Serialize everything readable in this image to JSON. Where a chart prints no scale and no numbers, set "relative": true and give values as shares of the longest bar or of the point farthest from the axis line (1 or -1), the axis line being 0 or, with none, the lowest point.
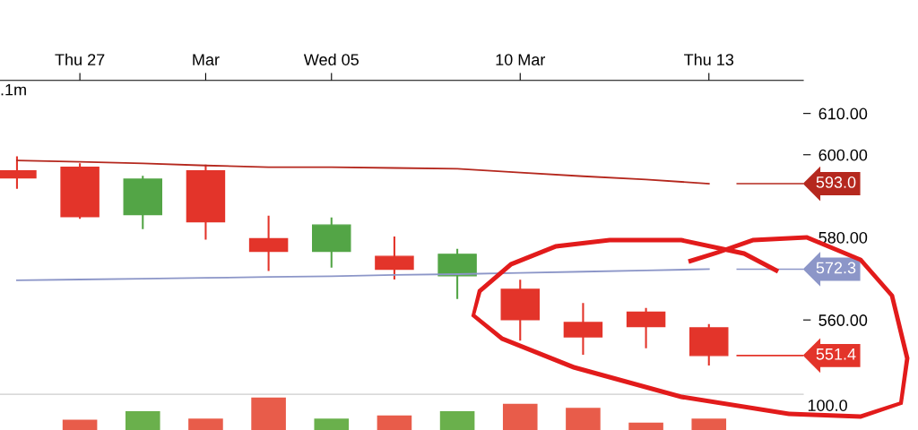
{
  "chart_data": [
    {
      "type": "candlestick",
      "categories": [
        null,
        "Thu 27",
        null,
        "Mar",
        null,
        "Wed 05",
        null,
        null,
        "10 Mar",
        null,
        null,
        "Thu 13"
      ],
      "ohlc": [
        [
          596.1,
          599.4,
          592.0,
          594.4
        ],
        [
          597.0,
          597.7,
          584.7,
          585.0
        ],
        [
          585.5,
          594.7,
          582.2,
          594.1
        ],
        [
          596.1,
          597.4,
          579.7,
          583.8
        ],
        [
          579.7,
          585.0,
          572.1,
          576.6
        ],
        [
          576.6,
          584.6,
          572.9,
          583.0
        ],
        [
          575.4,
          580.0,
          570.0,
          572.3
        ],
        [
          570.7,
          577.0,
          565.3,
          575.9
        ],
        [
          567.4,
          569.5,
          555.2,
          560.1
        ],
        [
          559.4,
          563.9,
          551.8,
          555.9
        ],
        [
          561.9,
          562.7,
          553.4,
          558.4
        ],
        [
          558.1,
          558.8,
          549.2,
          551.4
        ]
      ],
      "colors": [
        "#e3342a",
        "#e3342a",
        "#53a546",
        "#e3342a",
        "#e3342a",
        "#53a546",
        "#e3342a",
        "#53a546",
        "#e3342a",
        "#e3342a",
        "#e3342a",
        "#e3342a"
      ],
      "series": [
        {
          "type": "line",
          "color": "#b5281e",
          "values": [
            598.6,
            598.3,
            597.9,
            597.4,
            597.0,
            597.0,
            596.8,
            596.6,
            595.7,
            594.8,
            594.0,
            593.0
          ]
        },
        {
          "type": "line",
          "color": "#8c96c8",
          "values": [
            569.6,
            569.8,
            570.0,
            570.2,
            570.4,
            570.6,
            570.9,
            571.1,
            571.4,
            571.7,
            572.0,
            572.3
          ]
        }
      ],
      "ylim": [
        542,
        618
      ],
      "yticks": [
        {
          "value": 560,
          "label": "560.00"
        },
        {
          "value": 580,
          "label": "580.00"
        },
        {
          "value": 600,
          "label": "600.00"
        },
        {
          "value": 610,
          "label": "610.00"
        }
      ],
      "ref_lines": [
        {
          "axis": "y",
          "value": 593.0,
          "label": "593.0",
          "color": "#b5281e"
        },
        {
          "axis": "y",
          "value": 572.3,
          "label": "572.3",
          "color": "#8c96c8"
        },
        {
          "axis": "y",
          "value": 551.4,
          "label": "551.4",
          "color": "#e3342a"
        }
      ],
      "grid": false,
      "legend": false,
      "annotations": [
        ".1m"
      ]
    },
    {
      "type": "bar",
      "relative": true,
      "categories": [
        null,
        null,
        null,
        null,
        null,
        null,
        null,
        null,
        null,
        null,
        null,
        null
      ],
      "values": [
        null,
        0.32,
        0.58,
        0.35,
        1,
        0.35,
        0.45,
        0.58,
        0.81,
        0.68,
        0.23,
        0.35
      ],
      "colors": [
        "#e85c4a",
        "#e85c4a",
        "#6ab04c",
        "#e85c4a",
        "#e85c4a",
        "#6ab04c",
        "#e85c4a",
        "#6ab04c",
        "#e85c4a",
        "#e85c4a",
        "#e85c4a",
        "#e85c4a"
      ],
      "annotations": [
        "100.0"
      ]
    }
  ]
}
